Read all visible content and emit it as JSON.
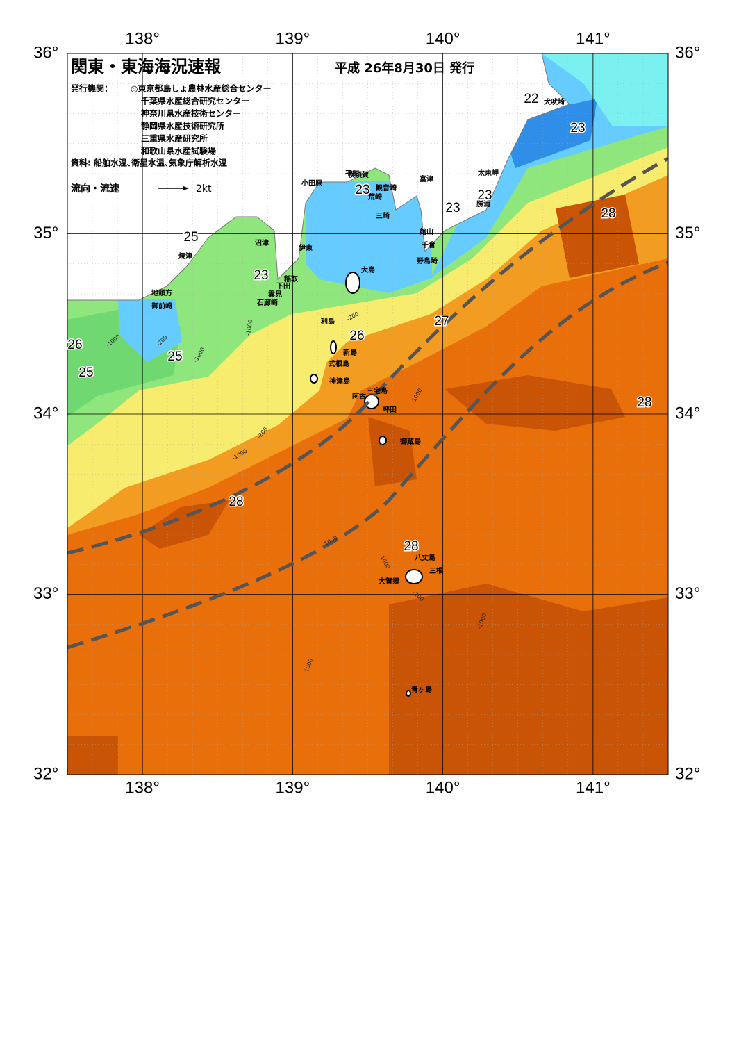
{
  "map": {
    "title": "関東・東海海況速報",
    "issued": "平成 26年8月30日 発行",
    "agency_label": "発行機関：",
    "agencies": [
      "◎東京都島しょ農林水産総合センター",
      "千葉県水産総合研究センター",
      "神奈川県水産技術センター",
      "静岡県水産技術研究所",
      "三重県水産研究所",
      "和歌山県水産試験場"
    ],
    "sources": "資料: 船舶水温､衛星水温､気象庁解析水温",
    "legend": {
      "label": "流向・流速",
      "speed": "2kt"
    },
    "lon_range": [
      137.5,
      141.5
    ],
    "lat_range": [
      32,
      36
    ],
    "lon_ticks": [
      {
        "value": 138,
        "label": "138°"
      },
      {
        "value": 139,
        "label": "139°"
      },
      {
        "value": 140,
        "label": "140°"
      },
      {
        "value": 141,
        "label": "141°"
      }
    ],
    "lat_ticks": [
      {
        "value": 36,
        "label": "36°"
      },
      {
        "value": 35,
        "label": "35°"
      },
      {
        "value": 34,
        "label": "34°"
      },
      {
        "value": 33,
        "label": "33°"
      },
      {
        "value": 32,
        "label": "32°"
      }
    ],
    "places": [
      "犬吠埼",
      "太東岬",
      "勝浦",
      "館山",
      "千倉",
      "野島埼",
      "富津",
      "横須賀",
      "観音崎",
      "荒崎",
      "三崎",
      "平塚",
      "小田原",
      "沼津",
      "伊東",
      "大島",
      "稲取",
      "下田",
      "雲見",
      "石廊崎",
      "焼津",
      "地頭方",
      "御前崎",
      "利島",
      "新島",
      "式根島",
      "神津島",
      "三宅島",
      "阿古",
      "坪田",
      "御蔵島",
      "八丈島",
      "三根",
      "大賀郷",
      "青ヶ島"
    ],
    "temperatures": [
      "22",
      "23",
      "23",
      "23",
      "23",
      "25",
      "23",
      "26",
      "25",
      "25",
      "26",
      "27",
      "28",
      "28",
      "28",
      "28"
    ],
    "depths": [
      "-1000",
      "-200",
      "-1000",
      "-1000",
      "-200",
      "-1000",
      "-200",
      "-1000",
      "-1000",
      "-1000",
      "-1000",
      "-1000",
      "-200"
    ]
  }
}
